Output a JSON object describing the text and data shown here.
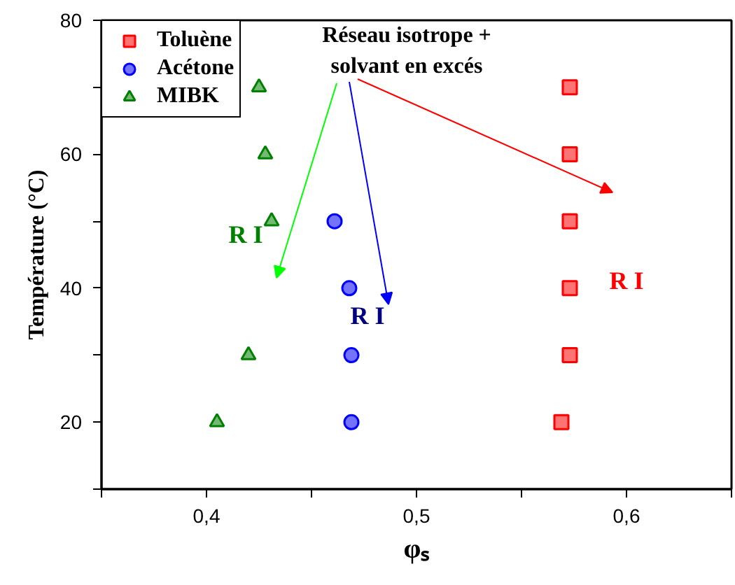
{
  "chart_data": {
    "type": "scatter",
    "xlabel": "φₛ",
    "ylabel": "Température (°C)",
    "xlim": [
      0.35,
      0.65
    ],
    "ylim": [
      10,
      80
    ],
    "xticks": [
      {
        "value": 0.35,
        "label": null
      },
      {
        "value": 0.4,
        "label": "0,4"
      },
      {
        "value": 0.45,
        "label": null
      },
      {
        "value": 0.5,
        "label": "0,5"
      },
      {
        "value": 0.55,
        "label": null
      },
      {
        "value": 0.6,
        "label": "0,6"
      },
      {
        "value": 0.65,
        "label": null
      }
    ],
    "yticks": [
      {
        "value": 10,
        "label": null
      },
      20,
      {
        "value": 30,
        "label": null
      },
      40,
      {
        "value": 50,
        "label": null
      },
      60,
      {
        "value": 70,
        "label": null
      },
      80
    ],
    "grid": false,
    "legend": "top left",
    "series": [
      {
        "name": "Toluène",
        "color": "#ff0000",
        "marker": "square",
        "x": [
          0.573,
          0.573,
          0.573,
          0.573,
          0.573,
          0.569
        ],
        "values": [
          70,
          60,
          50,
          40,
          30,
          20
        ]
      },
      {
        "name": "Acétone",
        "color": "#0000ff",
        "marker": "circle",
        "x": [
          0.461,
          0.468,
          0.469,
          0.469
        ],
        "values": [
          50,
          40,
          30,
          20
        ]
      },
      {
        "name": "MIBK",
        "color": "#008000",
        "marker": "triangle",
        "x": [
          0.425,
          0.428,
          0.431,
          0.42,
          0.405
        ],
        "values": [
          70,
          60,
          50,
          30,
          20
        ]
      }
    ],
    "annotations": [
      "Réseau isotrope +\nsolvant en excés",
      "R I",
      "R I",
      "R I"
    ]
  }
}
